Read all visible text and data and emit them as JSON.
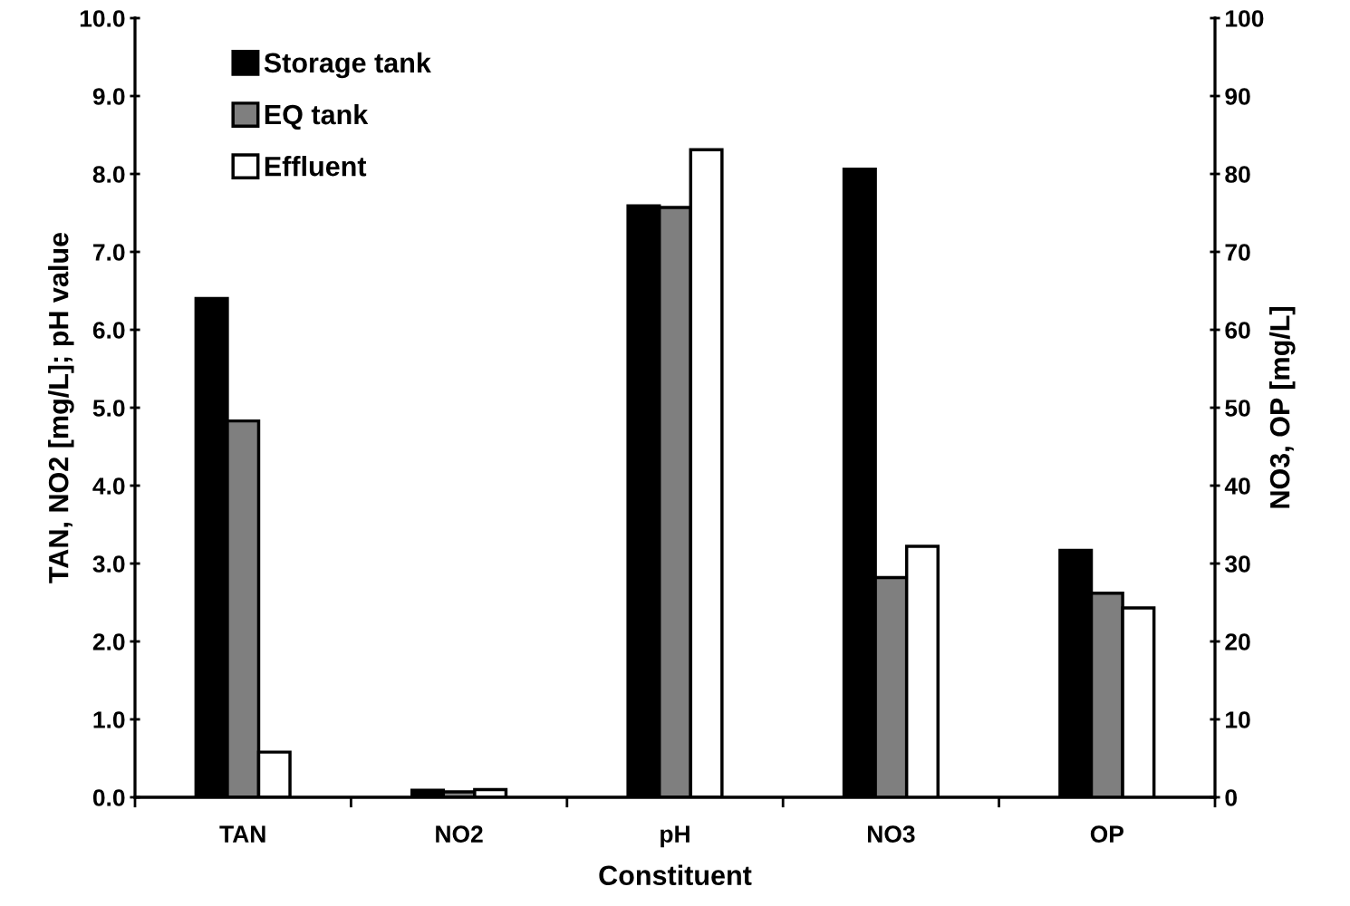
{
  "chart_data": {
    "type": "bar",
    "xlabel": "Constituent",
    "ylabel": "TAN, NO2 [mg/L]; pH value",
    "y2label": "NO3, OP [mg/L]",
    "categories": [
      "TAN",
      "NO2",
      "pH",
      "NO3",
      "OP"
    ],
    "series": [
      {
        "name": "Storage tank",
        "color": "#000000",
        "values": [
          6.4,
          0.09,
          7.59,
          null,
          null
        ]
      },
      {
        "name": "EQ tank",
        "color": "#7f7f7f",
        "values": [
          4.83,
          0.07,
          7.57,
          null,
          null
        ]
      },
      {
        "name": "Effluent",
        "color": "#ffffff",
        "values": [
          0.58,
          0.1,
          8.31,
          null,
          null
        ]
      },
      {
        "color": "#000000",
        "axis": "y2",
        "values": [
          null,
          null,
          null,
          80.6,
          31.7
        ]
      },
      {
        "color": "#7f7f7f",
        "axis": "y2",
        "values": [
          null,
          null,
          null,
          28.2,
          26.2
        ]
      },
      {
        "color": "#ffffff",
        "axis": "y2",
        "values": [
          null,
          null,
          null,
          32.2,
          24.3
        ]
      }
    ],
    "ylim": [
      0,
      10
    ],
    "yticks": [
      {
        "value": 0,
        "label": "0.0"
      },
      {
        "value": 1,
        "label": "1.0"
      },
      {
        "value": 2,
        "label": "2.0"
      },
      {
        "value": 3,
        "label": "3.0"
      },
      {
        "value": 4,
        "label": "4.0"
      },
      {
        "value": 5,
        "label": "5.0"
      },
      {
        "value": 6,
        "label": "6.0"
      },
      {
        "value": 7,
        "label": "7.0"
      },
      {
        "value": 8,
        "label": "8.0"
      },
      {
        "value": 9,
        "label": "9.0"
      },
      {
        "value": 10,
        "label": "10.0"
      }
    ],
    "y2lim": [
      0,
      100
    ],
    "y2ticks": [
      0,
      10,
      20,
      30,
      40,
      50,
      60,
      70,
      80,
      90,
      100
    ],
    "legend": "top left",
    "grid": false
  }
}
